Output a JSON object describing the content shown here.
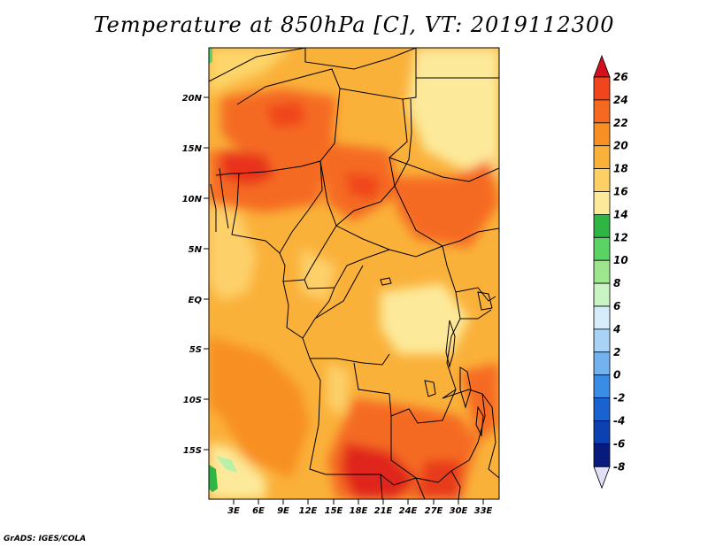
{
  "title": "Temperature at 850hPa [C], VT: 2019112300",
  "footer": "GrADS: IGES/COLA",
  "map": {
    "region": "Central and Southern-Central Africa",
    "lat_labels": [
      "20N",
      "15N",
      "10N",
      "5N",
      "EQ",
      "5S",
      "10S",
      "15S"
    ],
    "lon_labels": [
      "3E",
      "6E",
      "9E",
      "12E",
      "15E",
      "18E",
      "21E",
      "24E",
      "27E",
      "30E",
      "33E"
    ]
  },
  "colorbar": {
    "labels": [
      "26",
      "24",
      "22",
      "20",
      "18",
      "16",
      "14",
      "12",
      "10",
      "8",
      "6",
      "4",
      "2",
      "0",
      "-2",
      "-4",
      "-6",
      "-8"
    ],
    "colors": [
      "#e8201c",
      "#f0451d",
      "#f56a20",
      "#f88f24",
      "#fab13a",
      "#fcd064",
      "#fde99a",
      "#2eb543",
      "#5bd264",
      "#9ee68e",
      "#c9f3c2",
      "#d6ecfb",
      "#a9d3f6",
      "#74b2ef",
      "#3a8de4",
      "#1a62d0",
      "#0d40b0",
      "#081a7c"
    ],
    "top_arrow_color": "#d3101c",
    "bottom_arrow_color": "#e0e0f8"
  }
}
